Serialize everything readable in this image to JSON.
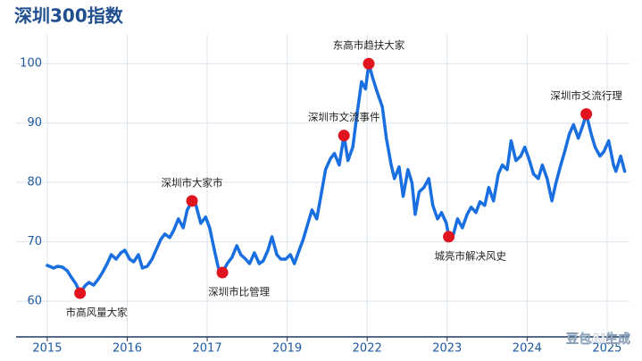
{
  "chart_data": {
    "type": "line",
    "title": "深圳300指数",
    "x": [
      0.0,
      0.08,
      0.13,
      0.19,
      0.25,
      0.3,
      0.36,
      0.41,
      0.47,
      0.52,
      0.58,
      0.64,
      0.69,
      0.75,
      0.8,
      0.86,
      0.92,
      0.97,
      1.03,
      1.08,
      1.14,
      1.19,
      1.25,
      1.31,
      1.36,
      1.42,
      1.47,
      1.53,
      1.58,
      1.64,
      1.7,
      1.75,
      1.81,
      1.86,
      1.92,
      1.98,
      2.03,
      2.09,
      2.14,
      2.19,
      2.25,
      2.31,
      2.37,
      2.42,
      2.48,
      2.53,
      2.59,
      2.65,
      2.7,
      2.76,
      2.81,
      2.87,
      2.92,
      2.98,
      3.04,
      3.09,
      3.15,
      3.2,
      3.26,
      3.31,
      3.37,
      3.43,
      3.48,
      3.54,
      3.59,
      3.65,
      3.71,
      3.76,
      3.82,
      3.87,
      3.93,
      3.98,
      4.02,
      4.07,
      4.13,
      4.19,
      4.24,
      4.3,
      4.34,
      4.4,
      4.45,
      4.51,
      4.56,
      4.6,
      4.65,
      4.71,
      4.77,
      4.82,
      4.88,
      4.93,
      4.99,
      5.02,
      5.08,
      5.13,
      5.19,
      5.25,
      5.3,
      5.36,
      5.41,
      5.47,
      5.52,
      5.58,
      5.64,
      5.69,
      5.75,
      5.8,
      5.86,
      5.92,
      5.97,
      6.03,
      6.08,
      6.14,
      6.19,
      6.25,
      6.31,
      6.36,
      6.42,
      6.47,
      6.53,
      6.58,
      6.64,
      6.7,
      6.74,
      6.8,
      6.85,
      6.91,
      6.96,
      7.02,
      7.08,
      7.11,
      7.17,
      7.22
    ],
    "series": [
      {
        "color": "#1a6fe0",
        "values": [
          66.03,
          65.58,
          65.88,
          65.73,
          65.13,
          64.07,
          62.87,
          61.36,
          62.56,
          63.17,
          62.71,
          63.77,
          64.83,
          66.33,
          67.84,
          67.09,
          68.14,
          68.6,
          67.09,
          66.64,
          67.84,
          65.58,
          65.88,
          67.09,
          68.6,
          70.41,
          71.31,
          70.71,
          71.92,
          73.88,
          72.37,
          75.38,
          76.89,
          76.14,
          73.12,
          74.18,
          72.37,
          68.6,
          65.58,
          64.83,
          66.33,
          67.39,
          69.35,
          67.84,
          67.09,
          66.33,
          68.14,
          66.33,
          66.79,
          68.6,
          70.86,
          67.84,
          67.09,
          67.09,
          67.84,
          66.33,
          68.6,
          70.41,
          73.12,
          75.38,
          73.88,
          78.4,
          82.17,
          83.98,
          84.89,
          82.93,
          87.9,
          83.68,
          85.94,
          91.22,
          96.95,
          95.75,
          100,
          97.56,
          94.99,
          92.73,
          87.45,
          82.93,
          80.66,
          82.62,
          77.65,
          82.17,
          79.91,
          74.63,
          78.4,
          79.16,
          80.66,
          76.14,
          73.88,
          74.93,
          73.12,
          70.86,
          71.31,
          73.88,
          72.37,
          74.63,
          75.84,
          74.93,
          76.74,
          76.14,
          79.16,
          76.89,
          81.42,
          82.93,
          82.17,
          87,
          83.68,
          84.43,
          85.94,
          83.68,
          81.42,
          80.66,
          82.93,
          80.66,
          76.89,
          79.91,
          82.93,
          85.19,
          88.21,
          89.71,
          87.45,
          89.71,
          91.52,
          88.21,
          85.94,
          84.43,
          85.19,
          87,
          82.93,
          81.87,
          84.43,
          81.87
        ]
      }
    ],
    "annotations": [
      {
        "text": "市高风量大家",
        "x": 0.41,
        "y": 61.36
      },
      {
        "text": "深圳市大家市",
        "x": 1.81,
        "y": 76.89
      },
      {
        "text": "深圳市比管理",
        "x": 2.19,
        "y": 64.83
      },
      {
        "text": "深圳市文流事件",
        "x": 3.71,
        "y": 87.9
      },
      {
        "text": "东高市趋扶大家",
        "x": 4.02,
        "y": 100
      },
      {
        "text": "城亮市解决风史",
        "x": 5.02,
        "y": 70.86
      },
      {
        "text": "深圳市爻流行理",
        "x": 6.74,
        "y": 91.52
      }
    ],
    "marker_color": "#e0141e",
    "xlim": [
      -0.39,
      7.28
    ],
    "xticks": [
      {
        "value": 0,
        "label": "2015"
      },
      {
        "value": 1,
        "label": "2016"
      },
      {
        "value": 2,
        "label": "2017"
      },
      {
        "value": 3,
        "label": "2019"
      },
      {
        "value": 4,
        "label": "2022"
      },
      {
        "value": 5,
        "label": "2023"
      },
      {
        "value": 6,
        "label": "2024"
      },
      {
        "value": 7,
        "label": "2025"
      }
    ],
    "ylim": [
      54,
      105
    ],
    "yticks": [
      60,
      70,
      80,
      90,
      100
    ],
    "grid": true,
    "watermark": "豆包AI生成"
  }
}
